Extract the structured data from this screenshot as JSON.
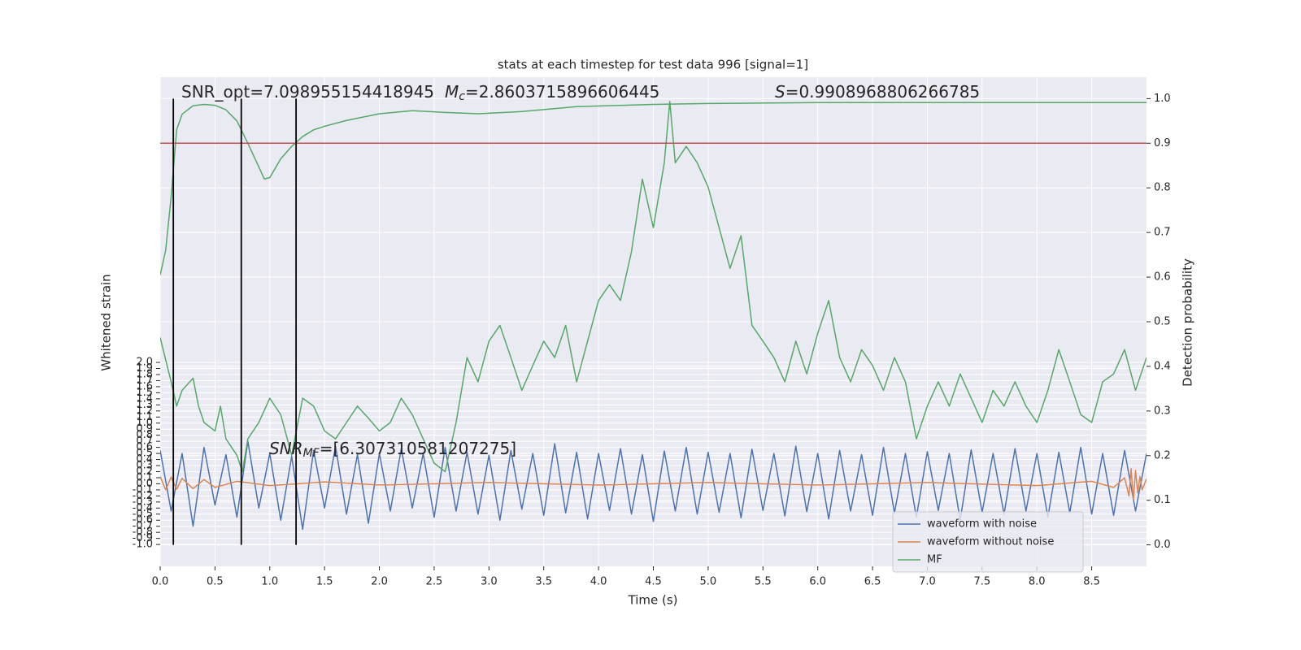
{
  "chart_data": {
    "type": "line",
    "title": "stats at each timestep for test data 996 [signal=1]",
    "xlabel": "Time (s)",
    "ylabel": "Whitened strain",
    "y2label": "Detection probability",
    "xlim": [
      0,
      9
    ],
    "ylim": [
      -1.36,
      6.7
    ],
    "y2lim": [
      -0.048,
      1.048
    ],
    "xticks": [
      {
        "value": 0,
        "label": "0.0"
      },
      0.5,
      {
        "value": 1,
        "label": "1.0"
      },
      1.5,
      {
        "value": 2,
        "label": "2.0"
      },
      2.5,
      {
        "value": 3,
        "label": "3.0"
      },
      3.5,
      {
        "value": 4,
        "label": "4.0"
      },
      4.5,
      {
        "value": 5,
        "label": "5.0"
      },
      5.5,
      {
        "value": 6,
        "label": "6.0"
      },
      6.5,
      {
        "value": 7,
        "label": "7.0"
      },
      7.5,
      {
        "value": 8,
        "label": "8.0"
      },
      8.5
    ],
    "yticks": [
      {
        "value": -1,
        "label": "-1.0"
      },
      -0.9,
      -0.8,
      -0.7,
      -0.6,
      -0.5,
      -0.4,
      -0.3,
      -0.2,
      -0.1,
      {
        "value": 0,
        "label": "0.0"
      },
      0.1,
      0.2,
      0.3,
      0.4,
      0.5,
      0.6,
      0.7,
      0.8,
      0.9,
      {
        "value": 1,
        "label": "1.0"
      },
      1.1,
      1.2,
      1.3,
      1.4,
      1.5,
      1.6,
      1.7,
      1.8,
      1.9,
      {
        "value": 2,
        "label": "2.0"
      }
    ],
    "y2ticks": [
      {
        "value": 0,
        "label": "0.0"
      },
      0.1,
      0.2,
      0.3,
      0.4,
      0.5,
      0.6,
      0.7,
      0.8,
      0.9,
      {
        "value": 1,
        "label": "1.0"
      }
    ],
    "grid": true,
    "legend": "lower right",
    "series": [
      {
        "name": "waveform with noise",
        "color": "#4c72b0",
        "x": [
          0,
          0.1,
          0.2,
          0.3,
          0.4,
          0.5,
          0.6,
          0.7,
          0.8,
          0.9,
          1.0,
          1.1,
          1.2,
          1.3,
          1.4,
          1.5,
          1.6,
          1.7,
          1.8,
          1.9,
          2.0,
          2.1,
          2.2,
          2.3,
          2.4,
          2.5,
          2.6,
          2.7,
          2.8,
          2.9,
          3.0,
          3.1,
          3.2,
          3.3,
          3.4,
          3.5,
          3.6,
          3.7,
          3.8,
          3.9,
          4.0,
          4.1,
          4.2,
          4.3,
          4.4,
          4.5,
          4.6,
          4.7,
          4.8,
          4.9,
          5.0,
          5.1,
          5.2,
          5.3,
          5.4,
          5.5,
          5.6,
          5.7,
          5.8,
          5.9,
          6.0,
          6.1,
          6.2,
          6.3,
          6.4,
          6.5,
          6.6,
          6.7,
          6.8,
          6.9,
          7.0,
          7.1,
          7.2,
          7.3,
          7.4,
          7.5,
          7.6,
          7.7,
          7.8,
          7.9,
          8.0,
          8.1,
          8.2,
          8.3,
          8.4,
          8.5,
          8.6,
          8.7,
          8.8,
          8.9,
          9.0
        ],
        "values": [
          0.55,
          -0.45,
          0.5,
          -0.7,
          0.6,
          -0.35,
          0.48,
          -0.55,
          0.7,
          -0.4,
          0.5,
          -0.6,
          0.45,
          -0.75,
          0.55,
          -0.4,
          0.62,
          -0.5,
          0.48,
          -0.65,
          0.5,
          -0.45,
          0.58,
          -0.4,
          0.5,
          -0.55,
          0.6,
          -0.45,
          0.52,
          -0.5,
          0.47,
          -0.6,
          0.55,
          -0.42,
          0.5,
          -0.52,
          0.66,
          -0.48,
          0.52,
          -0.58,
          0.5,
          -0.44,
          0.58,
          -0.5,
          0.48,
          -0.62,
          0.54,
          -0.45,
          0.6,
          -0.5,
          0.52,
          -0.47,
          0.5,
          -0.56,
          0.57,
          -0.44,
          0.5,
          -0.53,
          0.62,
          -0.46,
          0.5,
          -0.58,
          0.55,
          -0.45,
          0.48,
          -0.52,
          0.6,
          -0.48,
          0.5,
          -0.55,
          0.53,
          -0.44,
          0.5,
          -0.6,
          0.56,
          -0.47,
          0.5,
          -0.5,
          0.58,
          -0.45,
          0.5,
          -0.55,
          0.52,
          -0.48,
          0.6,
          -0.5,
          0.5,
          -0.52,
          0.55,
          -0.45,
          0.5
        ]
      },
      {
        "name": "waveform without noise",
        "color": "#dd8452",
        "x": [
          0,
          0.05,
          0.1,
          0.15,
          0.2,
          0.3,
          0.4,
          0.5,
          0.7,
          1.0,
          1.5,
          2,
          3,
          4,
          5,
          6,
          7,
          8,
          8.5,
          8.7,
          8.8,
          8.84,
          8.86,
          8.88,
          8.9,
          8.92,
          8.94,
          8.96,
          9.0
        ],
        "values": [
          0.12,
          -0.1,
          0.11,
          -0.09,
          0.09,
          -0.08,
          0.07,
          -0.06,
          0.04,
          -0.03,
          0.03,
          -0.02,
          0.02,
          -0.02,
          0.02,
          -0.02,
          0.02,
          -0.03,
          0.04,
          -0.06,
          0.1,
          -0.2,
          0.25,
          -0.28,
          0.22,
          -0.15,
          0.12,
          -0.1,
          0.08
        ]
      },
      {
        "name": "MF",
        "color": "#55a868",
        "x": [
          0,
          0.1,
          0.15,
          0.2,
          0.3,
          0.35,
          0.4,
          0.5,
          0.55,
          0.6,
          0.7,
          0.75,
          0.8,
          0.9,
          1.0,
          1.1,
          1.2,
          1.3,
          1.4,
          1.5,
          1.6,
          1.7,
          1.8,
          1.9,
          2.0,
          2.1,
          2.2,
          2.3,
          2.4,
          2.5,
          2.6,
          2.7,
          2.8,
          2.9,
          3.0,
          3.1,
          3.2,
          3.3,
          3.4,
          3.5,
          3.6,
          3.7,
          3.8,
          3.9,
          4.0,
          4.1,
          4.2,
          4.3,
          4.4,
          4.5,
          4.6,
          4.65,
          4.7,
          4.8,
          4.9,
          5.0,
          5.1,
          5.2,
          5.3,
          5.4,
          5.5,
          5.6,
          5.7,
          5.8,
          5.9,
          6.0,
          6.1,
          6.2,
          6.3,
          6.4,
          6.5,
          6.6,
          6.7,
          6.8,
          6.9,
          7.0,
          7.1,
          7.2,
          7.3,
          7.4,
          7.5,
          7.6,
          7.7,
          7.8,
          7.9,
          8.0,
          8.1,
          8.2,
          8.3,
          8.4,
          8.5,
          8.6,
          8.7,
          8.8,
          8.9,
          9.0
        ],
        "values": [
          2.41,
          1.68,
          1.28,
          1.54,
          1.74,
          1.28,
          1.01,
          0.87,
          1.28,
          0.74,
          0.47,
          0.2,
          0.74,
          1.01,
          1.41,
          1.14,
          0.47,
          1.41,
          1.28,
          0.87,
          0.74,
          1.01,
          1.28,
          1.08,
          0.87,
          1.01,
          1.41,
          1.14,
          0.74,
          0.34,
          0.2,
          1.01,
          2.08,
          1.68,
          2.35,
          2.61,
          2.08,
          1.54,
          1.95,
          2.35,
          2.08,
          2.61,
          1.68,
          2.35,
          3.02,
          3.28,
          3.02,
          3.82,
          5.02,
          4.22,
          5.29,
          6.3,
          5.29,
          5.56,
          5.29,
          4.89,
          4.22,
          3.55,
          4.09,
          2.61,
          2.35,
          2.08,
          1.68,
          2.35,
          1.81,
          2.48,
          3.02,
          2.08,
          1.68,
          2.21,
          1.95,
          1.54,
          2.08,
          1.68,
          0.74,
          1.28,
          1.68,
          1.28,
          1.81,
          1.41,
          1.01,
          1.54,
          1.28,
          1.68,
          1.28,
          1.01,
          1.54,
          2.21,
          1.68,
          1.14,
          1.01,
          1.68,
          1.81,
          2.21,
          1.54,
          2.08
        ]
      },
      {
        "color": "#55a868",
        "axis": "y2",
        "x": [
          0,
          0.05,
          0.1,
          0.15,
          0.2,
          0.3,
          0.4,
          0.5,
          0.6,
          0.7,
          0.8,
          0.9,
          0.95,
          1.0,
          1.1,
          1.2,
          1.3,
          1.4,
          1.5,
          1.7,
          2.0,
          2.3,
          2.6,
          2.9,
          3.3,
          3.8,
          4.5,
          5.0,
          6.0,
          9.0
        ],
        "values": [
          0.605,
          0.66,
          0.78,
          0.93,
          0.965,
          0.984,
          0.987,
          0.985,
          0.975,
          0.95,
          0.9,
          0.847,
          0.82,
          0.823,
          0.865,
          0.893,
          0.915,
          0.93,
          0.938,
          0.951,
          0.966,
          0.973,
          0.969,
          0.966,
          0.971,
          0.982,
          0.987,
          0.989,
          0.991,
          0.991
        ]
      }
    ],
    "threshold": {
      "value": 0.9,
      "color": "#c44e52"
    },
    "vlines": {
      "x": [
        0.12,
        0.74,
        1.24
      ],
      "span": [
        0,
        1
      ],
      "color": "#000000"
    },
    "annotations": [
      {
        "text": "SNR_opt=7.098955154418945"
      },
      {
        "symbol": "M",
        "sub": "c",
        "text": "=2.8603715896606445"
      },
      {
        "symbol": "S",
        "text": "=0.9908968806266785"
      },
      {
        "symbol": "SNR",
        "sub": "MF",
        "text": "=[6.307310581207275]"
      }
    ]
  }
}
